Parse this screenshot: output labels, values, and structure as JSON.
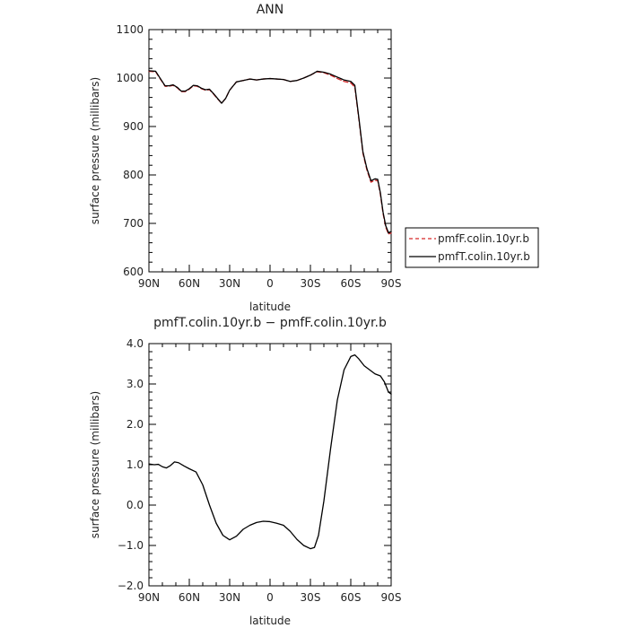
{
  "chart_data": [
    {
      "type": "line",
      "title": "ANN",
      "xlabel": "latitude",
      "ylabel": "surface pressure (millibars)",
      "xlim": [
        -90,
        90
      ],
      "ylim": [
        600,
        1100
      ],
      "x_ticks": [
        -90,
        -60,
        -30,
        0,
        30,
        60,
        90
      ],
      "x_tick_labels": [
        "90N",
        "60N",
        "30N",
        "0",
        "30S",
        "60S",
        "90S"
      ],
      "y_ticks": [
        600,
        700,
        800,
        900,
        1000,
        1100
      ],
      "y_tick_labels": [
        "600",
        "700",
        "800",
        "900",
        "1000",
        "1100"
      ],
      "legend_position": "right",
      "series": [
        {
          "name": "pmfF.colin.10yr.b",
          "color": "#d62728",
          "style": "dashed",
          "x": [
            -90,
            -85,
            -82,
            -78,
            -75,
            -72,
            -69,
            -66,
            -63,
            -60,
            -57,
            -54,
            -51,
            -48,
            -45,
            -42,
            -39,
            -36,
            -33,
            -30,
            -25,
            -20,
            -15,
            -10,
            -5,
            0,
            5,
            10,
            15,
            20,
            25,
            30,
            35,
            40,
            45,
            50,
            55,
            60,
            63,
            66,
            69,
            72,
            75,
            78,
            80,
            82,
            84,
            86,
            88,
            90
          ],
          "y": [
            1014,
            1013,
            1000,
            983,
            983,
            985,
            980,
            972,
            972,
            977,
            984,
            983,
            978,
            975,
            976,
            967,
            957,
            948,
            958,
            975,
            992,
            995,
            998,
            996,
            998,
            999,
            998,
            997,
            993,
            995,
            1000,
            1006,
            1013,
            1011,
            1006,
            999,
            993,
            990,
            981,
            915,
            845,
            810,
            785,
            789,
            788,
            760,
            720,
            692,
            678,
            680
          ]
        },
        {
          "name": "pmfT.colin.10yr.b",
          "color": "#000000",
          "style": "solid",
          "x": [
            -90,
            -85,
            -82,
            -78,
            -75,
            -72,
            -69,
            -66,
            -63,
            -60,
            -57,
            -54,
            -51,
            -48,
            -45,
            -42,
            -39,
            -36,
            -33,
            -30,
            -25,
            -20,
            -15,
            -10,
            -5,
            0,
            5,
            10,
            15,
            20,
            25,
            30,
            35,
            40,
            45,
            50,
            55,
            60,
            63,
            66,
            69,
            72,
            75,
            78,
            80,
            82,
            84,
            86,
            88,
            90
          ],
          "y": [
            1015,
            1014,
            1001,
            984,
            984,
            986,
            981,
            973,
            973,
            978,
            985,
            984,
            979,
            976,
            977,
            968,
            958,
            948,
            958,
            975,
            992,
            995,
            998,
            996,
            998,
            999,
            998,
            997,
            993,
            995,
            1000,
            1006,
            1014,
            1012,
            1008,
            1002,
            996,
            993,
            985,
            918,
            848,
            813,
            788,
            792,
            791,
            763,
            723,
            695,
            681,
            683
          ]
        }
      ]
    },
    {
      "type": "line",
      "title": "pmfT.colin.10yr.b − pmfF.colin.10yr.b",
      "xlabel": "latitude",
      "ylabel": "surface pressure (millibars)",
      "xlim": [
        -90,
        90
      ],
      "ylim": [
        -2,
        4
      ],
      "x_ticks": [
        -90,
        -60,
        -30,
        0,
        30,
        60,
        90
      ],
      "x_tick_labels": [
        "90N",
        "60N",
        "30N",
        "0",
        "30S",
        "60S",
        "90S"
      ],
      "y_ticks": [
        -2,
        -1,
        0,
        1,
        2,
        3,
        4
      ],
      "y_tick_labels": [
        "−2.0",
        "−1.0",
        "0.0",
        "1.0",
        "2.0",
        "3.0",
        "4.0"
      ],
      "series": [
        {
          "color": "#000000",
          "style": "solid",
          "x": [
            -90,
            -86,
            -83,
            -80,
            -77,
            -74,
            -71,
            -68,
            -64,
            -60,
            -55,
            -50,
            -45,
            -40,
            -35,
            -30,
            -25,
            -20,
            -15,
            -10,
            -5,
            0,
            5,
            10,
            15,
            20,
            25,
            30,
            33,
            36,
            40,
            45,
            50,
            55,
            60,
            63,
            66,
            70,
            74,
            78,
            82,
            85,
            88,
            90
          ],
          "y": [
            1.02,
            1.0,
            1.01,
            0.95,
            0.92,
            0.98,
            1.07,
            1.05,
            0.97,
            0.9,
            0.82,
            0.5,
            0.0,
            -0.45,
            -0.75,
            -0.86,
            -0.77,
            -0.6,
            -0.5,
            -0.43,
            -0.4,
            -0.41,
            -0.45,
            -0.5,
            -0.65,
            -0.85,
            -1.0,
            -1.08,
            -1.05,
            -0.75,
            0.1,
            1.4,
            2.6,
            3.35,
            3.68,
            3.72,
            3.62,
            3.45,
            3.35,
            3.25,
            3.2,
            3.05,
            2.8,
            2.75
          ]
        }
      ]
    }
  ]
}
